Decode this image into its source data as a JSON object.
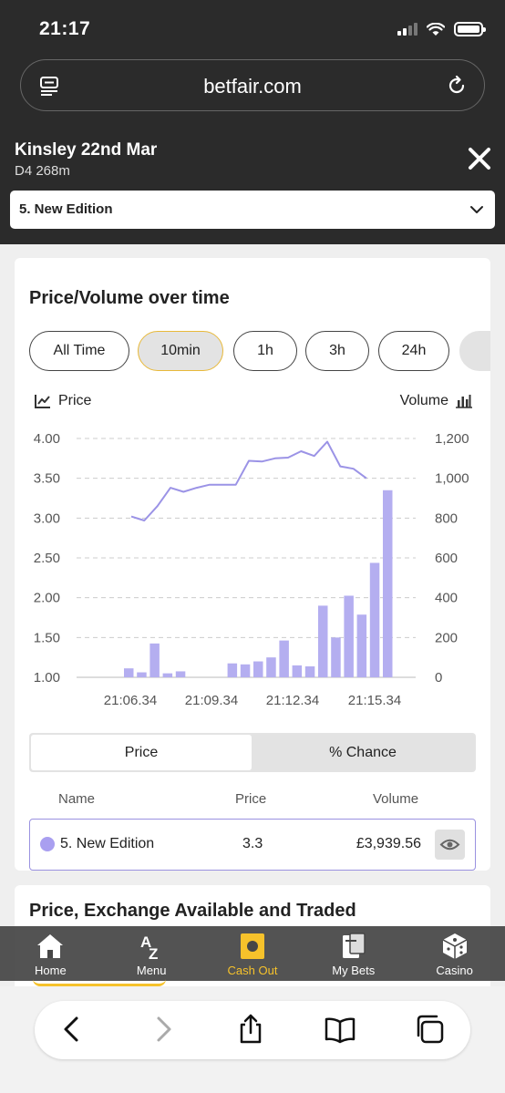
{
  "status_bar": {
    "time": "21:17"
  },
  "browser": {
    "domain": "betfair.com"
  },
  "event": {
    "title": "Kinsley 22nd Mar",
    "subtitle": "D4 268m",
    "selected_runner": "5. New Edition"
  },
  "chart_card": {
    "title": "Price/Volume over time",
    "range_tabs": [
      "All Time",
      "10min",
      "1h",
      "3h",
      "24h"
    ],
    "active_range": "10min",
    "price_legend": "Price",
    "volume_legend": "Volume",
    "toggle": {
      "price": "Price",
      "chance": "% Chance"
    },
    "table_headers": {
      "name": "Name",
      "price": "Price",
      "volume": "Volume"
    },
    "runner": {
      "name": "5. New Edition",
      "price": "3.3",
      "volume": "£3,939.56",
      "color": "#a99ff0"
    }
  },
  "chart_data": {
    "type": "bar",
    "title": "",
    "x_tick_labels": [
      "21:06.34",
      "21:09.34",
      "21:12.34",
      "21:15.34"
    ],
    "y_left_ticks": [
      "4.00",
      "3.50",
      "3.00",
      "2.50",
      "2.00",
      "1.50",
      "1.00"
    ],
    "y_right_ticks": [
      "1,200",
      "1,000",
      "800",
      "600",
      "400",
      "200",
      "0"
    ],
    "ylim_left": [
      1.0,
      4.0
    ],
    "ylim_right": [
      0,
      1200
    ],
    "grid": true,
    "series": [
      {
        "name": "Volume",
        "type": "bar",
        "axis": "right",
        "color": "#b4aef0",
        "values": [
          45,
          25,
          170,
          20,
          30,
          0,
          0,
          0,
          70,
          65,
          80,
          100,
          185,
          60,
          55,
          360,
          200,
          410,
          315,
          575,
          940
        ]
      },
      {
        "name": "Price",
        "type": "line",
        "axis": "left",
        "color": "#9b93e6",
        "values": [
          3.02,
          2.97,
          3.15,
          3.38,
          3.33,
          3.38,
          3.42,
          3.42,
          3.42,
          3.72,
          3.71,
          3.75,
          3.76,
          3.84,
          3.78,
          3.96,
          3.65,
          3.62,
          3.5
        ]
      }
    ]
  },
  "second_card": {
    "title": "Price, Exchange Available and Traded"
  },
  "bottom_nav": {
    "items": [
      {
        "label": "Home"
      },
      {
        "label": "Menu"
      },
      {
        "label": "Cash Out"
      },
      {
        "label": "My Bets"
      },
      {
        "label": "Casino"
      }
    ],
    "active": "Cash Out",
    "accent": "#f6c22b"
  }
}
